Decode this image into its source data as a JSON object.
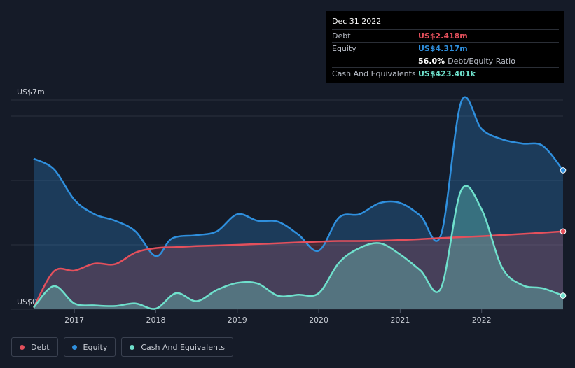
{
  "colors": {
    "background": "#151b28",
    "debt": "#e4505c",
    "equity": "#2f8fdd",
    "cash": "#6fe0cc",
    "grid": "#2a313e"
  },
  "tooltip": {
    "date": "Dec 31 2022",
    "debt_label": "Debt",
    "debt_value": "US$2.418m",
    "equity_label": "Equity",
    "equity_value": "US$4.317m",
    "ratio_value": "56.0%",
    "ratio_label": "Debt/Equity Ratio",
    "cash_label": "Cash And Equivalents",
    "cash_value": "US$423.401k"
  },
  "legend": {
    "debt": "Debt",
    "equity": "Equity",
    "cash": "Cash And Equivalents"
  },
  "chart_data": {
    "type": "area",
    "y_unit_max_label": "US$7m",
    "y_unit_min_label": "US$0",
    "ylim": [
      0,
      6.5
    ],
    "xlim": [
      2016.5,
      2023.0
    ],
    "x_ticks": [
      2017,
      2018,
      2019,
      2020,
      2021,
      2022
    ],
    "x_tick_labels": [
      "2017",
      "2018",
      "2019",
      "2020",
      "2021",
      "2022"
    ],
    "grid": true,
    "legend_position": "bottom-left",
    "series": [
      {
        "name": "Debt",
        "color_key": "debt",
        "x": [
          2016.5,
          2016.75,
          2017.0,
          2017.25,
          2017.5,
          2017.75,
          2018.0,
          2018.25,
          2018.5,
          2018.75,
          2019.0,
          2019.5,
          2020.0,
          2020.25,
          2020.5,
          2021.0,
          2021.5,
          2022.0,
          2022.5,
          2023.0
        ],
        "values": [
          0.05,
          1.18,
          1.2,
          1.42,
          1.4,
          1.76,
          1.9,
          1.93,
          1.96,
          1.98,
          2.0,
          2.05,
          2.1,
          2.12,
          2.12,
          2.15,
          2.21,
          2.27,
          2.34,
          2.418
        ]
      },
      {
        "name": "Equity",
        "color_key": "equity",
        "x": [
          2016.5,
          2016.75,
          2017.0,
          2017.25,
          2017.5,
          2017.75,
          2018.0,
          2018.2,
          2018.5,
          2018.75,
          2019.0,
          2019.25,
          2019.5,
          2019.75,
          2020.0,
          2020.25,
          2020.5,
          2020.75,
          2021.0,
          2021.25,
          2021.5,
          2021.75,
          2022.0,
          2022.25,
          2022.5,
          2022.75,
          2023.0
        ],
        "values": [
          4.68,
          4.35,
          3.4,
          2.95,
          2.75,
          2.42,
          1.65,
          2.2,
          2.3,
          2.42,
          2.95,
          2.75,
          2.72,
          2.32,
          1.82,
          2.85,
          2.95,
          3.3,
          3.3,
          2.9,
          2.3,
          6.45,
          5.6,
          5.28,
          5.15,
          5.08,
          4.317
        ]
      },
      {
        "name": "Cash And Equivalents",
        "color_key": "cash",
        "x": [
          2016.5,
          2016.75,
          2017.0,
          2017.25,
          2017.5,
          2017.75,
          2018.0,
          2018.25,
          2018.5,
          2018.75,
          2019.0,
          2019.25,
          2019.5,
          2019.75,
          2020.0,
          2020.25,
          2020.5,
          2020.75,
          2021.0,
          2021.25,
          2021.5,
          2021.75,
          2022.0,
          2022.25,
          2022.5,
          2022.75,
          2023.0
        ],
        "values": [
          0.05,
          0.72,
          0.18,
          0.12,
          0.1,
          0.18,
          0.02,
          0.5,
          0.25,
          0.6,
          0.82,
          0.8,
          0.42,
          0.45,
          0.5,
          1.45,
          1.9,
          2.05,
          1.7,
          1.2,
          0.65,
          3.7,
          3.1,
          1.3,
          0.75,
          0.65,
          0.423401
        ]
      }
    ]
  }
}
